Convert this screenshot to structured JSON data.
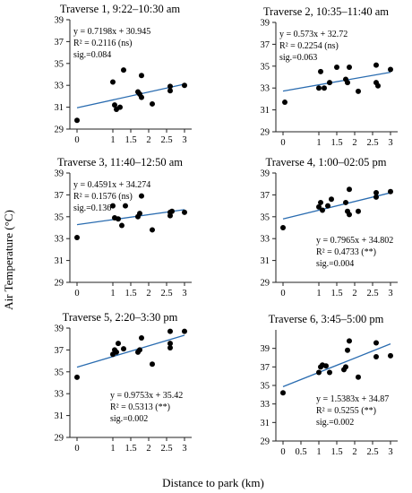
{
  "figure": {
    "ylabel": "Air Temperature (°C)",
    "xlabel": "Distance to park (km)"
  },
  "chart_data": [
    {
      "type": "scatter",
      "title": "Traverse 1, 9:22–10:30 am",
      "ylim": [
        29,
        39
      ],
      "yticks": [
        29,
        31,
        33,
        35,
        37,
        39
      ],
      "xlim": [
        -0.2,
        3.2
      ],
      "xticks": [
        0,
        1,
        1.5,
        2,
        2.5,
        3
      ],
      "xticklabels": [
        "0",
        "1",
        "1.5",
        "2",
        "2.5",
        "3"
      ],
      "fit": {
        "slope": 0.7198,
        "intercept": 30.945
      },
      "stats": [
        "y = 0.7198x + 30.945",
        "R² = 0.2116 (ns)",
        "sig.=0.084"
      ],
      "stats_position": "top-left",
      "points": [
        [
          0,
          29.8
        ],
        [
          1.0,
          33.3
        ],
        [
          1.05,
          31.2
        ],
        [
          1.1,
          30.8
        ],
        [
          1.2,
          31.0
        ],
        [
          1.3,
          34.4
        ],
        [
          1.7,
          32.4
        ],
        [
          1.75,
          32.2
        ],
        [
          1.8,
          33.9
        ],
        [
          1.8,
          31.9
        ],
        [
          2.1,
          31.3
        ],
        [
          2.6,
          32.9
        ],
        [
          2.6,
          32.5
        ],
        [
          3.0,
          33.0
        ]
      ]
    },
    {
      "type": "scatter",
      "title": "Traverse 2, 10:35–11:40 am",
      "ylim": [
        29,
        39
      ],
      "yticks": [
        29,
        31,
        33,
        35,
        37,
        39
      ],
      "xlim": [
        -0.2,
        3.2
      ],
      "xticks": [
        0,
        1,
        1.5,
        2,
        2.5,
        3
      ],
      "xticklabels": [
        "0",
        "1",
        "1.5",
        "2",
        "2.5",
        "3"
      ],
      "fit": {
        "slope": 0.573,
        "intercept": 32.72
      },
      "stats": [
        "y = 0.573x + 32.72",
        "R² = 0.2254 (ns)",
        "sig.=0.063"
      ],
      "stats_position": "top-left",
      "points": [
        [
          0.05,
          31.7
        ],
        [
          1.0,
          33.0
        ],
        [
          1.05,
          34.5
        ],
        [
          1.15,
          33.0
        ],
        [
          1.3,
          33.5
        ],
        [
          1.5,
          34.9
        ],
        [
          1.75,
          33.8
        ],
        [
          1.8,
          33.5
        ],
        [
          1.85,
          34.9
        ],
        [
          2.1,
          32.7
        ],
        [
          2.6,
          35.1
        ],
        [
          2.6,
          33.5
        ],
        [
          2.65,
          33.2
        ],
        [
          3.0,
          34.7
        ]
      ]
    },
    {
      "type": "scatter",
      "title": "Traverse 3, 11:40–12:50 am",
      "ylim": [
        29,
        39
      ],
      "yticks": [
        29,
        31,
        33,
        35,
        37,
        39
      ],
      "xlim": [
        -0.2,
        3.2
      ],
      "xticks": [
        0,
        1,
        1.5,
        2,
        2.5,
        3
      ],
      "xticklabels": [
        "0",
        "1",
        "1.5",
        "2",
        "2.5",
        "3"
      ],
      "fit": {
        "slope": 0.4591,
        "intercept": 34.274
      },
      "stats": [
        "y = 0.4591x + 34.274",
        "R² = 0.1576 (ns)",
        "sig.=0.136"
      ],
      "stats_position": "top-left",
      "points": [
        [
          0,
          33.1
        ],
        [
          1.0,
          36.0
        ],
        [
          1.05,
          34.9
        ],
        [
          1.15,
          34.8
        ],
        [
          1.25,
          34.2
        ],
        [
          1.35,
          36.0
        ],
        [
          1.7,
          35.0
        ],
        [
          1.75,
          35.3
        ],
        [
          1.8,
          36.9
        ],
        [
          2.1,
          33.8
        ],
        [
          2.6,
          35.4
        ],
        [
          2.6,
          35.1
        ],
        [
          2.65,
          35.5
        ],
        [
          3.0,
          35.4
        ]
      ]
    },
    {
      "type": "scatter",
      "title": "Traverse 4, 1:00–02:05 pm",
      "ylim": [
        29,
        39
      ],
      "yticks": [
        29,
        31,
        33,
        35,
        37,
        39
      ],
      "xlim": [
        -0.2,
        3.2
      ],
      "xticks": [
        0,
        1,
        1.5,
        2,
        2.5,
        3
      ],
      "xticklabels": [
        "0",
        "1",
        "1.5",
        "2",
        "2.5",
        "3"
      ],
      "fit": {
        "slope": 0.7965,
        "intercept": 34.802
      },
      "stats": [
        "y = 0.7965x + 34.802",
        "R² = 0.4733 (**)",
        "sig.=0.004"
      ],
      "stats_position": "bottom-right",
      "points": [
        [
          0,
          34.0
        ],
        [
          1.0,
          35.9
        ],
        [
          1.05,
          36.3
        ],
        [
          1.1,
          35.6
        ],
        [
          1.25,
          36.0
        ],
        [
          1.35,
          36.6
        ],
        [
          1.75,
          36.3
        ],
        [
          1.8,
          35.5
        ],
        [
          1.85,
          37.5
        ],
        [
          1.85,
          35.2
        ],
        [
          2.1,
          35.5
        ],
        [
          2.6,
          37.2
        ],
        [
          2.6,
          36.8
        ],
        [
          3.0,
          37.3
        ]
      ]
    },
    {
      "type": "scatter",
      "title": "Traverse 5, 2:20–3:30 pm",
      "ylim": [
        29,
        39
      ],
      "yticks": [
        29,
        31,
        33,
        35,
        37,
        39
      ],
      "xlim": [
        -0.2,
        3.2
      ],
      "xticks": [
        0,
        1,
        1.5,
        2,
        2.5,
        3
      ],
      "xticklabels": [
        "0",
        "1",
        "1.5",
        "2",
        "2.5",
        "3"
      ],
      "fit": {
        "slope": 0.9753,
        "intercept": 35.42
      },
      "stats": [
        "y = 0.9753x + 35.42",
        "R² = 0.5313 (**)",
        "sig.=0.002"
      ],
      "stats_position": "bottom-right",
      "points": [
        [
          0,
          34.5
        ],
        [
          1.0,
          36.6
        ],
        [
          1.05,
          37.0
        ],
        [
          1.1,
          36.8
        ],
        [
          1.15,
          37.6
        ],
        [
          1.3,
          37.1
        ],
        [
          1.7,
          36.8
        ],
        [
          1.75,
          37.0
        ],
        [
          1.8,
          38.1
        ],
        [
          2.1,
          35.7
        ],
        [
          2.6,
          38.7
        ],
        [
          2.6,
          37.6
        ],
        [
          2.6,
          37.2
        ],
        [
          3.0,
          38.7
        ]
      ]
    },
    {
      "type": "scatter",
      "title": "Traverse 6, 3:45–5:00 pm",
      "ylim": [
        29,
        41
      ],
      "yticks": [
        29,
        31,
        33,
        35,
        37,
        39
      ],
      "xlim": [
        -0.2,
        3.2
      ],
      "xticks": [
        0,
        0.5,
        1,
        1.5,
        2,
        2.5,
        3
      ],
      "xticklabels": [
        "0",
        "0.5",
        "1",
        "1.5",
        "2",
        "2.5",
        "3"
      ],
      "fit": {
        "slope": 1.5383,
        "intercept": 34.87
      },
      "stats": [
        "y = 1.5383x + 34.87",
        "R² = 0.5255 (**)",
        "sig.=0.002"
      ],
      "stats_position": "bottom-right",
      "points": [
        [
          0,
          34.2
        ],
        [
          1.0,
          36.4
        ],
        [
          1.05,
          37.0
        ],
        [
          1.1,
          37.2
        ],
        [
          1.2,
          37.1
        ],
        [
          1.3,
          36.4
        ],
        [
          1.7,
          36.7
        ],
        [
          1.75,
          37.0
        ],
        [
          1.8,
          38.8
        ],
        [
          1.85,
          39.8
        ],
        [
          2.1,
          35.9
        ],
        [
          2.6,
          39.6
        ],
        [
          2.6,
          38.1
        ],
        [
          3.0,
          38.2
        ]
      ]
    }
  ]
}
